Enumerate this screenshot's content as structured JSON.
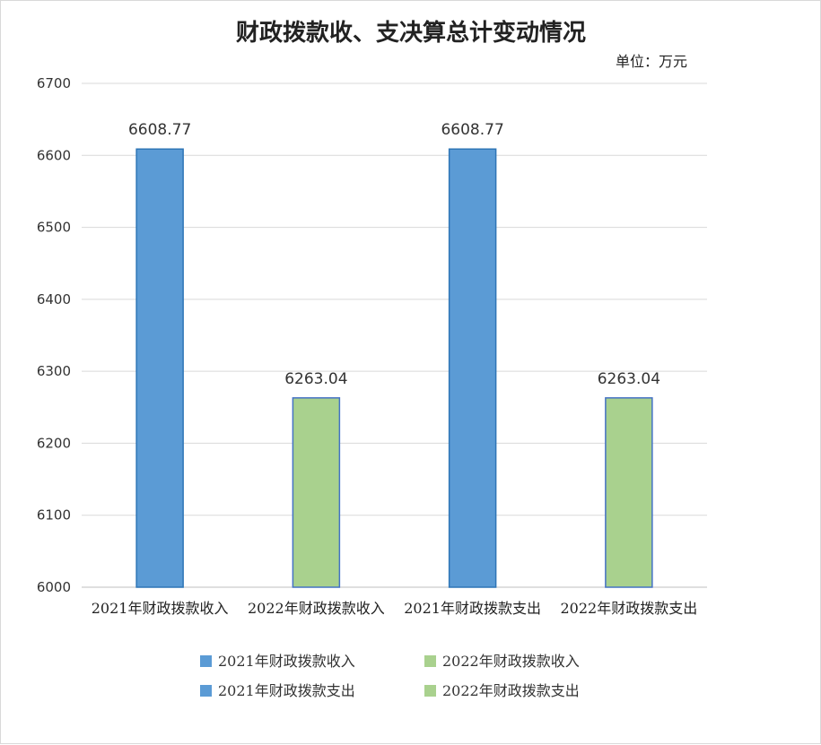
{
  "chart_data": {
    "type": "bar",
    "title": "财政拨款收、支决算总计变动情况",
    "unit": "单位：万元",
    "categories": [
      "2021年财政拨款收入",
      "2022年财政拨款收入",
      "2021年财政拨款支出",
      "2022年财政拨款支出"
    ],
    "values": [
      6608.77,
      6263.04,
      6608.77,
      6263.04
    ],
    "data_labels": [
      "6608.77",
      "6263.04",
      "6608.77",
      "6263.04"
    ],
    "bar_colors": [
      "#5b9bd5",
      "#a9d18e",
      "#5b9bd5",
      "#a9d18e"
    ],
    "bar_border_colors": [
      "#2e75b6",
      "#4472c4",
      "#2e75b6",
      "#4472c4"
    ],
    "ylim": [
      6000,
      6700
    ],
    "yticks": [
      "6000",
      "6100",
      "6200",
      "6300",
      "6400",
      "6500",
      "6600",
      "6700"
    ],
    "grid": true,
    "legend_position": "bottom",
    "legend": [
      {
        "label": "2021年财政拨款收入",
        "color": "#5b9bd5"
      },
      {
        "label": "2022年财政拨款收入",
        "color": "#a9d18e"
      },
      {
        "label": "2021年财政拨款支出",
        "color": "#5b9bd5"
      },
      {
        "label": "2022年财政拨款支出",
        "color": "#a9d18e"
      }
    ]
  }
}
